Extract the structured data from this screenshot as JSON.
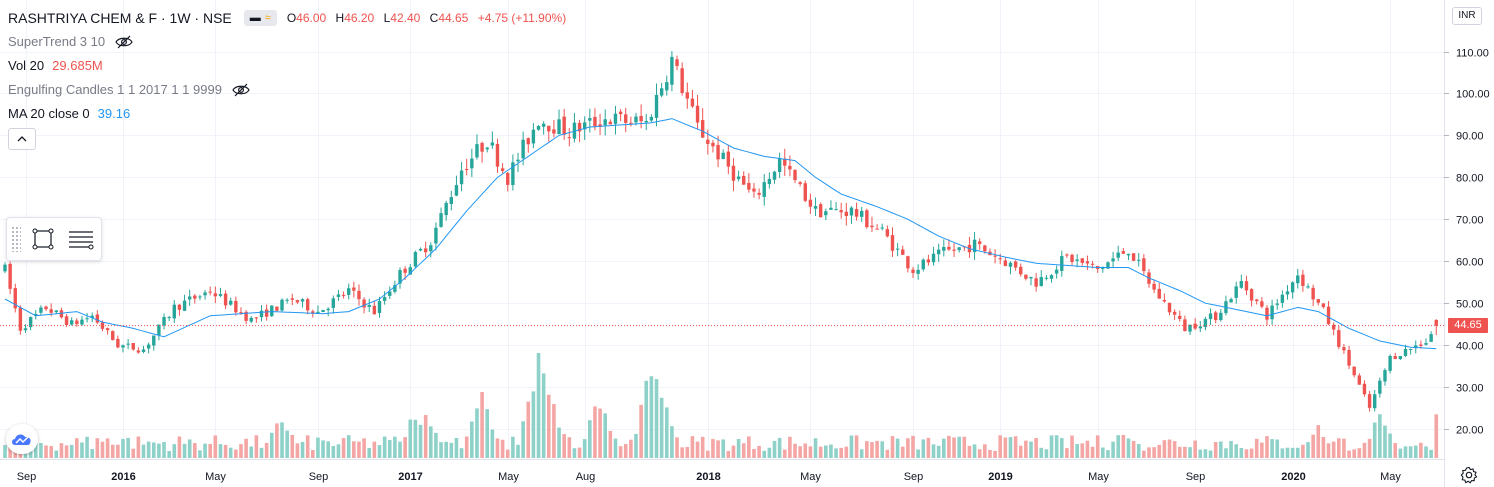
{
  "header": {
    "symbol": "RASHTRIYA CHEM & F · 1W · NSE",
    "ohlc": [
      {
        "label": "O",
        "value": "46.00"
      },
      {
        "label": "H",
        "value": "46.20"
      },
      {
        "label": "L",
        "value": "42.40"
      },
      {
        "label": "C",
        "value": "44.65"
      }
    ],
    "change": "+4.75 (+11.90%)",
    "currency": "INR"
  },
  "indicators": {
    "supertrend": {
      "label": "SuperTrend 3 10"
    },
    "volume": {
      "label": "Vol 20",
      "value": "29.685M"
    },
    "engulfing": {
      "label": "Engulfing Candles 1 1 2017 1 1 9999"
    },
    "ma": {
      "label": "MA 20 close 0",
      "value": "39.16"
    }
  },
  "colors": {
    "up": "#26a69a",
    "down": "#ef5350",
    "up_volume": "#8ed1c9",
    "down_volume": "#f4a6a4",
    "ma_line": "#2196f3",
    "grid": "#f0f3fa",
    "axis_text": "#131722"
  },
  "chart_data": {
    "type": "candlestick",
    "y_axis_labels": [
      "110.00",
      "100.00",
      "90.00",
      "80.00",
      "70.00",
      "60.00",
      "50.00",
      "40.00",
      "30.00",
      "20.00"
    ],
    "y_ticks": [
      110,
      100,
      90,
      80,
      70,
      60,
      50,
      40,
      30,
      20
    ],
    "x_axis_labels": [
      "Sep",
      "2016",
      "May",
      "Sep",
      "2017",
      "May",
      "Aug",
      "2018",
      "May",
      "Sep",
      "2019",
      "May",
      "Sep",
      "2020",
      "May"
    ],
    "last_price": "44.65",
    "last_price_value": 44.65,
    "price_anchors": [
      [
        0,
        58
      ],
      [
        3,
        44
      ],
      [
        8,
        49
      ],
      [
        13,
        45
      ],
      [
        17,
        47
      ],
      [
        22,
        40
      ],
      [
        27,
        39
      ],
      [
        33,
        49
      ],
      [
        40,
        53
      ],
      [
        48,
        46
      ],
      [
        56,
        51
      ],
      [
        61,
        48
      ],
      [
        67,
        53
      ],
      [
        72,
        48
      ],
      [
        77,
        57
      ],
      [
        83,
        65
      ],
      [
        89,
        82
      ],
      [
        94,
        89
      ],
      [
        98,
        80
      ],
      [
        104,
        94
      ],
      [
        110,
        91
      ],
      [
        117,
        94
      ],
      [
        125,
        93
      ],
      [
        130,
        108
      ],
      [
        135,
        92
      ],
      [
        140,
        84
      ],
      [
        146,
        75
      ],
      [
        151,
        84
      ],
      [
        158,
        72
      ],
      [
        165,
        72
      ],
      [
        171,
        67
      ],
      [
        177,
        58
      ],
      [
        183,
        62
      ],
      [
        189,
        64
      ],
      [
        195,
        60
      ],
      [
        201,
        55
      ],
      [
        207,
        61
      ],
      [
        213,
        58
      ],
      [
        219,
        63
      ],
      [
        224,
        53
      ],
      [
        230,
        44
      ],
      [
        236,
        47
      ],
      [
        241,
        55
      ],
      [
        246,
        47
      ],
      [
        252,
        57
      ],
      [
        257,
        48
      ],
      [
        261,
        38
      ],
      [
        266,
        25
      ],
      [
        270,
        37
      ],
      [
        277,
        41
      ],
      [
        279,
        44.65
      ]
    ],
    "ma_anchors": [
      [
        0,
        51
      ],
      [
        6,
        47
      ],
      [
        14,
        48
      ],
      [
        19,
        45.5
      ],
      [
        25,
        44
      ],
      [
        31,
        42
      ],
      [
        40,
        47
      ],
      [
        52,
        48
      ],
      [
        62,
        47.5
      ],
      [
        67,
        48
      ],
      [
        73,
        51
      ],
      [
        78,
        56
      ],
      [
        84,
        63
      ],
      [
        90,
        72
      ],
      [
        96,
        80
      ],
      [
        102,
        85
      ],
      [
        108,
        90
      ],
      [
        114,
        92
      ],
      [
        120,
        92.5
      ],
      [
        126,
        93
      ],
      [
        130,
        94
      ],
      [
        136,
        91
      ],
      [
        142,
        87
      ],
      [
        148,
        85
      ],
      [
        154,
        84
      ],
      [
        158,
        80
      ],
      [
        163,
        76
      ],
      [
        170,
        73
      ],
      [
        176,
        70
      ],
      [
        182,
        66
      ],
      [
        188,
        63
      ],
      [
        195,
        61
      ],
      [
        201,
        59.5
      ],
      [
        207,
        59
      ],
      [
        213,
        58.5
      ],
      [
        219,
        58.5
      ],
      [
        223,
        56
      ],
      [
        229,
        53
      ],
      [
        234,
        50
      ],
      [
        240,
        48.5
      ],
      [
        246,
        47
      ],
      [
        252,
        49
      ],
      [
        256,
        48
      ],
      [
        262,
        44
      ],
      [
        268,
        41
      ],
      [
        274,
        39.5
      ],
      [
        279,
        39.16
      ]
    ],
    "volume_peaks": [
      [
        20,
        0.2
      ],
      [
        54,
        0.4
      ],
      [
        80,
        0.45
      ],
      [
        82,
        0.5
      ],
      [
        93,
        0.58
      ],
      [
        104,
        1.0
      ],
      [
        106,
        0.62
      ],
      [
        116,
        0.6
      ],
      [
        126,
        0.88
      ],
      [
        128,
        0.6
      ],
      [
        218,
        0.28
      ],
      [
        256,
        0.3
      ],
      [
        268,
        0.4
      ]
    ]
  }
}
